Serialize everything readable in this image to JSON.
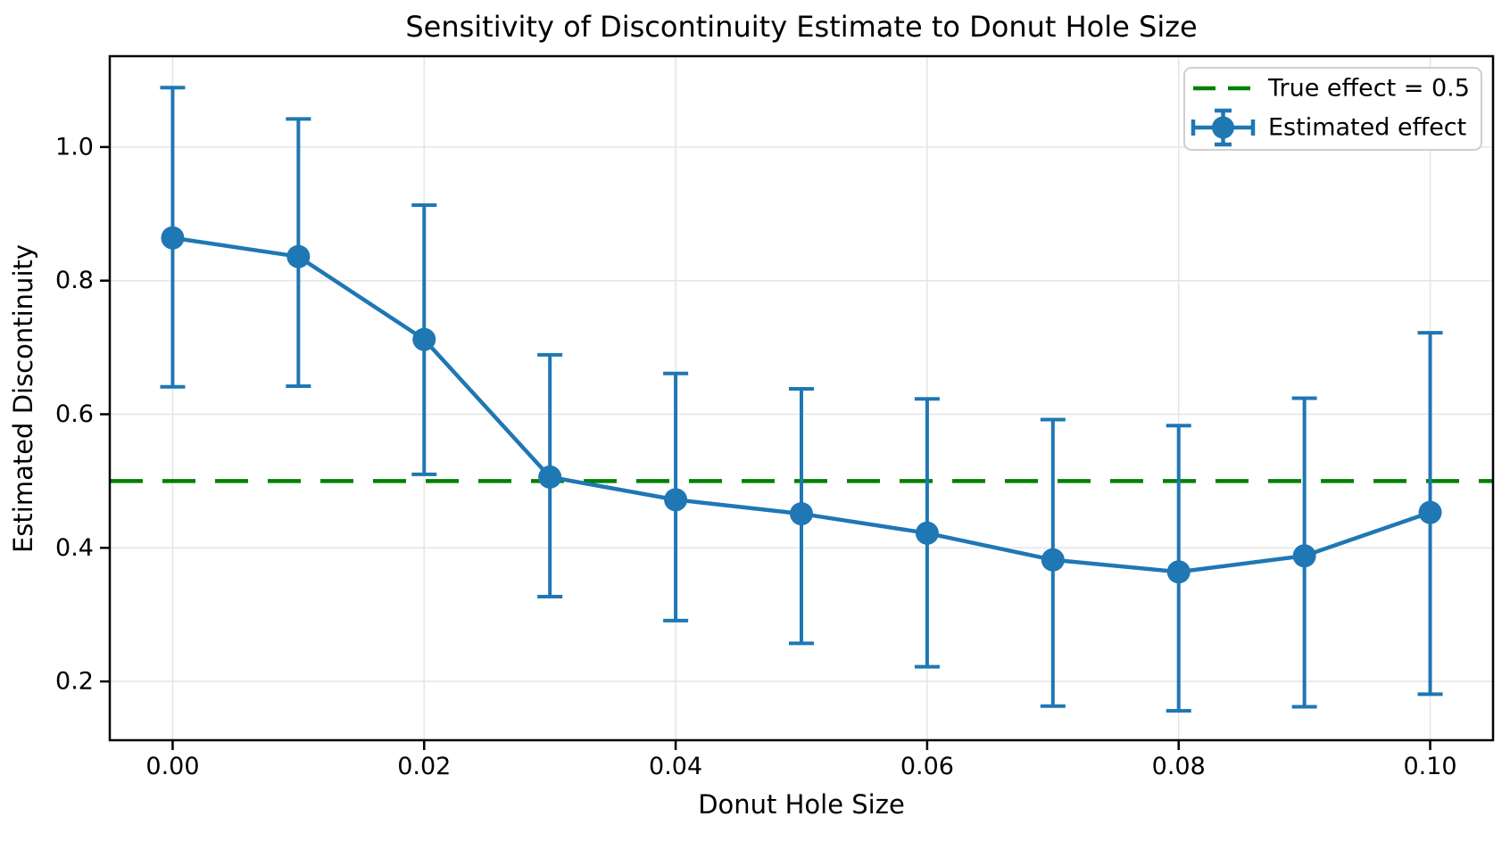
{
  "chart_data": {
    "type": "line",
    "title": "Sensitivity of Discontinuity Estimate to Donut Hole Size",
    "xlabel": "Donut Hole Size",
    "ylabel": "Estimated Discontinuity",
    "x": [
      0.0,
      0.01,
      0.02,
      0.03,
      0.04,
      0.05,
      0.06,
      0.07,
      0.08,
      0.09,
      0.1
    ],
    "series": [
      {
        "name": "Estimated effect",
        "style": "errorbar-line-with-circle-markers",
        "color": "#1f77b4",
        "values": [
          0.864,
          0.836,
          0.712,
          0.506,
          0.472,
          0.451,
          0.422,
          0.382,
          0.364,
          0.388,
          0.453
        ],
        "ci_lower": [
          0.641,
          0.642,
          0.51,
          0.327,
          0.291,
          0.257,
          0.222,
          0.163,
          0.156,
          0.162,
          0.181
        ],
        "ci_upper": [
          1.089,
          1.042,
          0.913,
          0.689,
          0.661,
          0.638,
          0.623,
          0.592,
          0.583,
          0.624,
          0.722
        ]
      }
    ],
    "reference_line": {
      "name": "True effect = 0.5",
      "value": 0.5,
      "color": "#008000",
      "style": "dashed"
    },
    "xlim": [
      -0.005,
      0.105
    ],
    "ylim": [
      0.112,
      1.136
    ],
    "xticks": {
      "values": [
        0.0,
        0.02,
        0.04,
        0.06,
        0.08,
        0.1
      ],
      "labels": [
        "0.00",
        "0.02",
        "0.04",
        "0.06",
        "0.08",
        "0.10"
      ]
    },
    "yticks": {
      "values": [
        0.2,
        0.4,
        0.6,
        0.8,
        1.0
      ],
      "labels": [
        "0.2",
        "0.4",
        "0.6",
        "0.8",
        "1.0"
      ]
    },
    "grid": true,
    "grid_color": "#e6e6e6",
    "legend": {
      "position": "upper right",
      "items": [
        {
          "label": "True effect = 0.5",
          "color": "#008000",
          "glyph": "dashed-line"
        },
        {
          "label": "Estimated effect",
          "color": "#1f77b4",
          "glyph": "errorbar-marker"
        }
      ]
    }
  }
}
